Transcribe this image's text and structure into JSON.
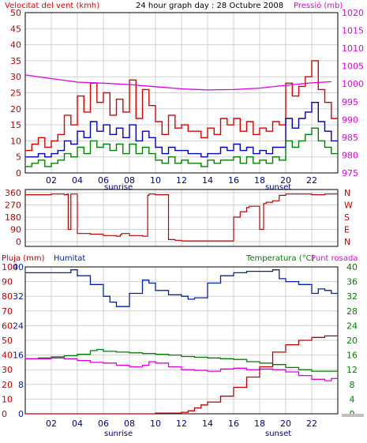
{
  "header": {
    "wind_label": "Velocitat del vent (kmh)",
    "title": "24 hour graph day : 28 Octubre 2008",
    "pressure_label": "Pressió (mb)"
  },
  "bottom_header": {
    "rain_label": "Pluja (mm)",
    "humidity_label": "Humitat",
    "temp_label": "Temperatura (°C)",
    "dew_label": "Punt rosada"
  },
  "markers": {
    "sunrise": "sunrise",
    "sunset": "sunset"
  },
  "colors": {
    "wind_gust": "#e00000",
    "wind_avg": "#0000c0",
    "wind_low": "#008000",
    "pressure": "#e000e0",
    "direction": "#c00000",
    "humidity": "#0020b0",
    "temperature": "#008000",
    "dewpoint": "#e000e0",
    "rain": "#c00000",
    "grid": "#d0d0d0",
    "frame": "#000000"
  },
  "chart_data": [
    {
      "type": "line",
      "title": "24 hour graph day : 28 Octubre 2008",
      "x_ticks": [
        "02",
        "04",
        "06",
        "08",
        "10",
        "12",
        "14",
        "16",
        "18",
        "20",
        "22"
      ],
      "x_range": [
        0,
        24
      ],
      "y_left": {
        "label": "Velocitat del vent (kmh)",
        "range": [
          0,
          50
        ],
        "ticks": [
          "0",
          "5",
          "10",
          "15",
          "20",
          "25",
          "30",
          "35",
          "40",
          "45",
          "50"
        ]
      },
      "y_right": {
        "label": "Pressió (mb)",
        "range": [
          975,
          1020
        ],
        "ticks": [
          "975",
          "980",
          "985",
          "990",
          "995",
          "1000",
          "1005",
          "1010",
          "1015",
          "1020"
        ]
      },
      "series": [
        {
          "name": "gust",
          "axis": "left",
          "x": [
            0,
            0.5,
            1,
            1.5,
            2,
            2.5,
            3,
            3.5,
            4,
            4.5,
            5,
            5.5,
            6,
            6.5,
            7,
            7.5,
            8,
            8.5,
            9,
            9.5,
            10,
            10.5,
            11,
            11.5,
            12,
            12.5,
            13,
            13.5,
            14,
            14.5,
            15,
            15.5,
            16,
            16.5,
            17,
            17.5,
            18,
            18.5,
            19,
            19.5,
            20,
            20.5,
            21,
            21.5,
            22,
            22.5,
            23,
            23.5
          ],
          "y": [
            7,
            9,
            11,
            8,
            10,
            12,
            18,
            15,
            24,
            19,
            28,
            22,
            25,
            18,
            23,
            19,
            29,
            17,
            26,
            21,
            16,
            12,
            18,
            14,
            15,
            13,
            13,
            11,
            14,
            12,
            17,
            15,
            17,
            13,
            16,
            12,
            14,
            13,
            16,
            15,
            28,
            24,
            27,
            30,
            35,
            26,
            22,
            17
          ]
        },
        {
          "name": "average",
          "axis": "left",
          "x": [
            0,
            0.5,
            1,
            1.5,
            2,
            2.5,
            3,
            3.5,
            4,
            4.5,
            5,
            5.5,
            6,
            6.5,
            7,
            7.5,
            8,
            8.5,
            9,
            9.5,
            10,
            10.5,
            11,
            11.5,
            12,
            12.5,
            13,
            13.5,
            14,
            14.5,
            15,
            15.5,
            16,
            16.5,
            17,
            17.5,
            18,
            18.5,
            19,
            19.5,
            20,
            20.5,
            21,
            21.5,
            22,
            22.5,
            23,
            23.5
          ],
          "y": [
            5,
            5,
            6,
            5,
            6,
            7,
            10,
            9,
            13,
            11,
            16,
            13,
            15,
            12,
            14,
            11,
            15,
            10,
            13,
            11,
            8,
            6,
            8,
            7,
            7,
            6,
            6,
            5,
            6,
            6,
            8,
            7,
            9,
            7,
            8,
            6,
            7,
            6,
            8,
            8,
            17,
            14,
            17,
            19,
            22,
            16,
            13,
            10
          ]
        },
        {
          "name": "low",
          "axis": "left",
          "x": [
            0,
            0.5,
            1,
            1.5,
            2,
            2.5,
            3,
            3.5,
            4,
            4.5,
            5,
            5.5,
            6,
            6.5,
            7,
            7.5,
            8,
            8.5,
            9,
            9.5,
            10,
            10.5,
            11,
            11.5,
            12,
            12.5,
            13,
            13.5,
            14,
            14.5,
            15,
            15.5,
            16,
            16.5,
            17,
            17.5,
            18,
            18.5,
            19,
            19.5,
            20,
            20.5,
            21,
            21.5,
            22,
            22.5,
            23,
            23.5
          ],
          "y": [
            2,
            3,
            4,
            2,
            3,
            4,
            6,
            5,
            8,
            6,
            10,
            8,
            9,
            7,
            9,
            6,
            9,
            6,
            8,
            6,
            4,
            3,
            5,
            3,
            4,
            3,
            3,
            2,
            4,
            3,
            4,
            4,
            5,
            3,
            5,
            3,
            4,
            3,
            5,
            4,
            10,
            8,
            10,
            12,
            14,
            10,
            8,
            6
          ]
        },
        {
          "name": "pressure",
          "axis": "right",
          "x": [
            0,
            2,
            4,
            6,
            8,
            10,
            12,
            14,
            16,
            18,
            20,
            22,
            23.5
          ],
          "y": [
            1002.5,
            1001.5,
            1000.5,
            1000.2,
            999.8,
            999.2,
            998.6,
            998.3,
            998.4,
            998.8,
            999.6,
            1000.3,
            1000.6
          ]
        }
      ]
    },
    {
      "type": "line",
      "y_ticks_left": [
        "360",
        "270",
        "180",
        "90",
        "0"
      ],
      "y_ticks_right": [
        "N",
        "W",
        "S",
        "E",
        "N"
      ],
      "y_range": [
        0,
        360
      ],
      "series": [
        {
          "name": "direction",
          "x": [
            0,
            1,
            2,
            3,
            3.2,
            3.3,
            3.5,
            4,
            5,
            6,
            7,
            7.3,
            7.4,
            8,
            9,
            9.4,
            9.5,
            10,
            10.5,
            11,
            11.5,
            12,
            13,
            14,
            15,
            16,
            16.5,
            17,
            17.2,
            17.5,
            18,
            18.3,
            18.5,
            19,
            19.5,
            20,
            21,
            22,
            23,
            23.5
          ],
          "y": [
            345,
            345,
            350,
            345,
            350,
            90,
            350,
            60,
            55,
            45,
            40,
            50,
            60,
            45,
            40,
            340,
            350,
            345,
            345,
            15,
            10,
            5,
            5,
            5,
            5,
            180,
            220,
            250,
            260,
            260,
            90,
            280,
            290,
            300,
            340,
            350,
            350,
            345,
            350,
            350
          ]
        }
      ]
    },
    {
      "type": "line",
      "x_ticks": [
        "02",
        "04",
        "06",
        "08",
        "10",
        "12",
        "14",
        "16",
        "18",
        "20",
        "22"
      ],
      "x_range": [
        0,
        24
      ],
      "y_rain": {
        "label": "Pluja (mm)",
        "range": [
          0,
          100
        ],
        "ticks": [
          "0",
          "10",
          "20",
          "30",
          "40",
          "50",
          "60",
          "70",
          "80",
          "90",
          "100"
        ]
      },
      "y_humidity": {
        "label": "Humitat",
        "range": [
          0,
          100
        ],
        "ticks": [
          "0",
          "8",
          "16",
          "24",
          "32",
          "40"
        ]
      },
      "y_temp": {
        "label": "Temperatura (°C)",
        "range": [
          0,
          40
        ],
        "ticks": [
          "0",
          "4",
          "8",
          "12",
          "16",
          "20",
          "24",
          "28",
          "32",
          "36",
          "40"
        ]
      },
      "series": [
        {
          "name": "humidity",
          "axis": "humidity",
          "x": [
            0,
            1,
            2,
            3,
            3.5,
            4,
            5,
            6,
            6.5,
            7,
            8,
            9,
            9.5,
            10,
            11,
            12,
            12.5,
            13,
            14,
            15,
            16,
            17,
            18,
            19,
            19.5,
            20,
            21,
            22,
            22.5,
            23,
            23.5
          ],
          "y": [
            96,
            96,
            96,
            96,
            98,
            94,
            88,
            80,
            76,
            73,
            82,
            91,
            89,
            84,
            81,
            80,
            78,
            79,
            89,
            94,
            96,
            97,
            97,
            98,
            92,
            90,
            88,
            82,
            85,
            84,
            82
          ]
        },
        {
          "name": "temperature",
          "axis": "temp",
          "x": [
            0,
            1,
            2,
            3,
            4,
            5,
            5.5,
            6,
            7,
            8,
            9,
            10,
            11,
            12,
            13,
            14,
            15,
            16,
            17,
            18,
            19,
            20,
            21,
            22,
            23,
            23.5
          ],
          "y": [
            15,
            15.2,
            15.5,
            15.8,
            16.2,
            17.2,
            17.5,
            17,
            16.8,
            16.6,
            16.4,
            16.2,
            16,
            15.6,
            15.4,
            15.2,
            15,
            14.8,
            14.2,
            13.8,
            13.4,
            12.6,
            12,
            11.6,
            11.6,
            11.6
          ]
        },
        {
          "name": "dewpoint",
          "axis": "temp",
          "x": [
            0,
            1,
            2,
            3,
            4,
            5,
            6,
            7,
            8,
            9,
            9.5,
            10,
            11,
            12,
            13,
            14,
            15,
            16,
            17,
            18,
            19,
            20,
            21,
            22,
            23,
            23.5
          ],
          "y": [
            15,
            15,
            15.2,
            15,
            14.5,
            14,
            13.8,
            13.2,
            12.8,
            13.2,
            14.2,
            13.8,
            12.8,
            12,
            11.8,
            11.6,
            12.2,
            12.4,
            12,
            12.2,
            12,
            11.4,
            10.4,
            9.4,
            9,
            9.6
          ]
        },
        {
          "name": "rain",
          "axis": "rain",
          "x": [
            0,
            8,
            10,
            12,
            12.5,
            13,
            13.5,
            14,
            15,
            16,
            17,
            18,
            19,
            20,
            21,
            22,
            23,
            23.5
          ],
          "y": [
            0,
            0,
            0.5,
            1,
            2,
            4,
            6,
            8,
            12,
            18,
            25,
            32,
            42,
            47,
            50,
            52,
            53,
            53
          ]
        }
      ]
    }
  ]
}
